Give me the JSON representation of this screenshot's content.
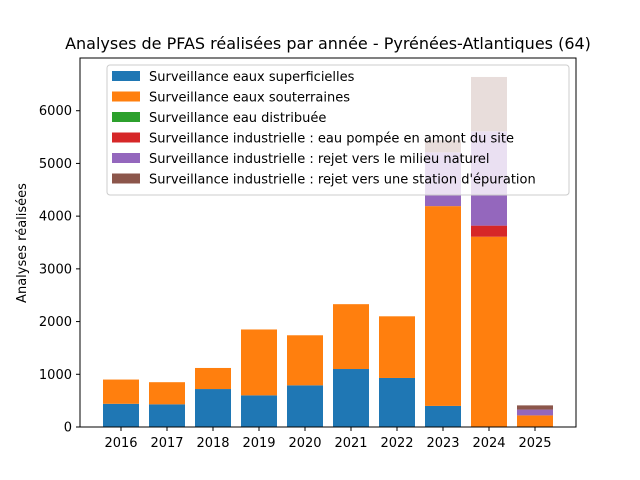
{
  "chart_data": {
    "type": "bar",
    "stacked": true,
    "title": "Analyses de PFAS réalisées par année - Pyrénées-Atlantiques (64)",
    "xlabel": "",
    "ylabel": "Analyses réalisées",
    "ylim": [
      0,
      7000
    ],
    "yticks": [
      0,
      1000,
      2000,
      3000,
      4000,
      5000,
      6000
    ],
    "grid": false,
    "legend_position": "top",
    "categories": [
      "2016",
      "2017",
      "2018",
      "2019",
      "2020",
      "2021",
      "2022",
      "2023",
      "2024",
      "2025"
    ],
    "series": [
      {
        "name": "Surveillance eaux superficielles",
        "color": "#1f77b4",
        "values": [
          440,
          430,
          720,
          600,
          790,
          1100,
          930,
          400,
          0,
          0
        ]
      },
      {
        "name": "Surveillance eaux souterraines",
        "color": "#ff7f0e",
        "values": [
          460,
          420,
          400,
          1250,
          950,
          1230,
          1170,
          3790,
          3610,
          220
        ]
      },
      {
        "name": "Surveillance eau distribuée",
        "color": "#2ca02c",
        "values": [
          0,
          0,
          0,
          0,
          0,
          0,
          0,
          0,
          0,
          0
        ]
      },
      {
        "name": "Surveillance industrielle : eau pompée en amont du site",
        "color": "#d62728",
        "values": [
          0,
          0,
          0,
          0,
          0,
          0,
          0,
          0,
          210,
          0
        ]
      },
      {
        "name": "Surveillance industrielle : rejet vers le milieu naturel",
        "color": "#9467bd",
        "values": [
          0,
          0,
          0,
          0,
          0,
          0,
          0,
          1020,
          1790,
          110
        ]
      },
      {
        "name": "Surveillance industrielle : rejet vers une station d'épuration",
        "color": "#8c564b",
        "values": [
          0,
          0,
          0,
          0,
          0,
          0,
          0,
          230,
          1030,
          80
        ]
      }
    ]
  }
}
